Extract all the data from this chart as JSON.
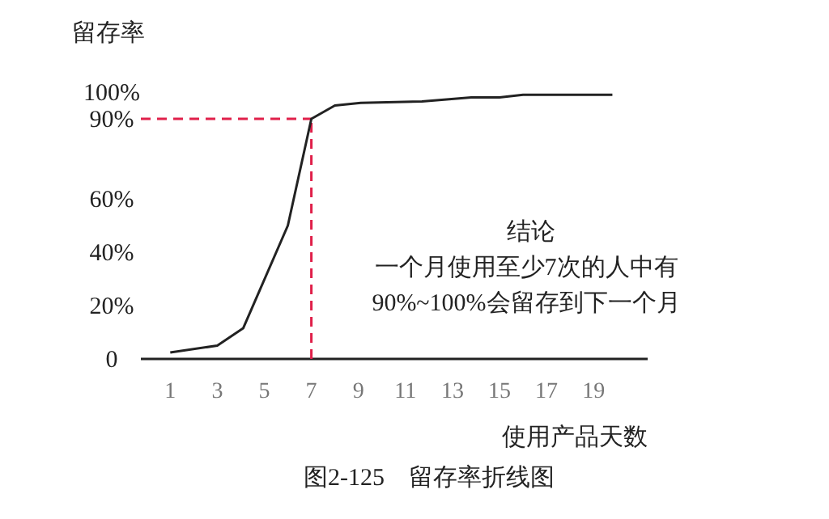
{
  "chart_data": {
    "type": "line",
    "ylabel": "留存率",
    "xlabel": "使用产品天数",
    "x": [
      1,
      3,
      4.1,
      6,
      7,
      8,
      9.1,
      11.7,
      13.8,
      15,
      16,
      19.8
    ],
    "series": [
      {
        "color": "#222222",
        "values": [
          2.4,
          5,
          11.5,
          50,
          90,
          95,
          96,
          96.5,
          98,
          98,
          99,
          99
        ]
      }
    ],
    "xlim": [
      -0.25,
      21.3
    ],
    "ylim": [
      0,
      100
    ],
    "xticks": [
      1,
      3,
      5,
      7,
      9,
      11,
      13,
      15,
      17,
      19
    ],
    "yticks": [
      {
        "value": 0,
        "label": "0"
      },
      {
        "value": 20,
        "label": "20%"
      },
      {
        "value": 40,
        "label": "40%"
      },
      {
        "value": 60,
        "label": "60%"
      },
      {
        "value": 90,
        "label": "90%"
      },
      {
        "value": 100,
        "label": "100%"
      }
    ],
    "ref_lines": [
      {
        "axis": "y",
        "value": 90,
        "color": "#e0204a",
        "line_style": "dashed"
      },
      {
        "axis": "x",
        "value": 7,
        "color": "#e0204a",
        "line_style": "dashed"
      }
    ],
    "annotations": [
      "结论",
      "一个月使用至少7次的人中有",
      "90%~100%会留存到下一个月",
      "图2-125　留存率折线图"
    ],
    "grid": false,
    "marker": "none",
    "line_style": "solid"
  }
}
